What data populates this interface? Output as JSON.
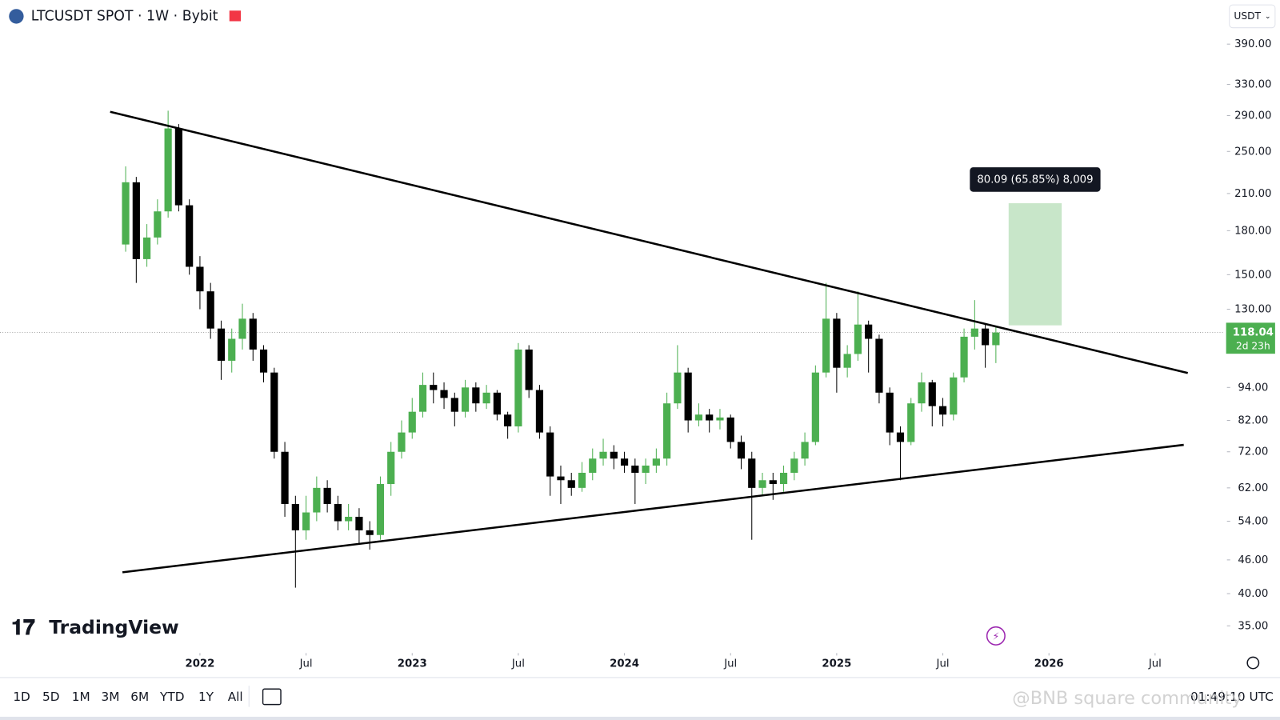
{
  "header": {
    "symbol": "LTCUSDT SPOT · 1W · Bybit",
    "currency": "USDT"
  },
  "chart_data": {
    "type": "candlestick",
    "scale": "log",
    "up_color": "#4caf50",
    "down_color": "#000000",
    "x": [
      2021.65,
      2021.7,
      2021.75,
      2021.8,
      2021.85,
      2021.9,
      2021.95,
      2022.0,
      2022.05,
      2022.1,
      2022.15,
      2022.2,
      2022.25,
      2022.3,
      2022.35,
      2022.4,
      2022.45,
      2022.5,
      2022.55,
      2022.6,
      2022.65,
      2022.7,
      2022.75,
      2022.8,
      2022.85,
      2022.9,
      2022.95,
      2023.0,
      2023.05,
      2023.1,
      2023.15,
      2023.2,
      2023.25,
      2023.3,
      2023.35,
      2023.4,
      2023.45,
      2023.5,
      2023.55,
      2023.6,
      2023.65,
      2023.7,
      2023.75,
      2023.8,
      2023.85,
      2023.9,
      2023.95,
      2024.0,
      2024.05,
      2024.1,
      2024.15,
      2024.2,
      2024.25,
      2024.3,
      2024.35,
      2024.4,
      2024.45,
      2024.5,
      2024.55,
      2024.6,
      2024.65,
      2024.7,
      2024.75,
      2024.8,
      2024.85,
      2024.9,
      2024.95,
      2025.0,
      2025.05,
      2025.1,
      2025.15,
      2025.2,
      2025.25,
      2025.3,
      2025.35,
      2025.4,
      2025.45,
      2025.5,
      2025.55,
      2025.6,
      2025.65,
      2025.7,
      2025.75
    ],
    "open": [
      170,
      220,
      160,
      175,
      195,
      275,
      200,
      155,
      140,
      120,
      105,
      115,
      125,
      110,
      100,
      72,
      58,
      52,
      56,
      62,
      58,
      54,
      55,
      52,
      51,
      63,
      72,
      78,
      85,
      95,
      93,
      90,
      85,
      94,
      88,
      92,
      84,
      80,
      110,
      93,
      78,
      65,
      64,
      62,
      66,
      70,
      72,
      70,
      68,
      66,
      68,
      70,
      88,
      100,
      82,
      84,
      82,
      83,
      75,
      70,
      62,
      64,
      63,
      66,
      70,
      75,
      100,
      125,
      102,
      108,
      122,
      115,
      92,
      78,
      75,
      88,
      96,
      87,
      84,
      98,
      116,
      120,
      112
    ],
    "high": [
      235,
      225,
      185,
      205,
      296,
      280,
      205,
      162,
      145,
      124,
      120,
      133,
      128,
      112,
      102,
      75,
      60,
      60,
      65,
      64,
      60,
      58,
      57,
      54,
      65,
      75,
      82,
      90,
      100,
      100,
      96,
      92,
      97,
      96,
      95,
      93,
      85,
      113,
      112,
      95,
      80,
      68,
      66,
      69,
      73,
      76,
      74,
      72,
      70,
      70,
      73,
      92,
      112,
      102,
      88,
      86,
      86,
      84,
      77,
      72,
      66,
      66,
      68,
      72,
      78,
      103,
      145,
      128,
      112,
      140,
      124,
      117,
      94,
      80,
      90,
      100,
      97,
      90,
      100,
      120,
      135,
      122,
      121
    ],
    "low": [
      165,
      145,
      155,
      170,
      190,
      195,
      150,
      130,
      115,
      97,
      100,
      110,
      105,
      96,
      70,
      55,
      41,
      50,
      54,
      56,
      52,
      52,
      49,
      48,
      50,
      60,
      70,
      76,
      83,
      88,
      86,
      80,
      83,
      85,
      86,
      82,
      76,
      78,
      90,
      76,
      60,
      58,
      60,
      61,
      64,
      68,
      67,
      66,
      58,
      63,
      66,
      68,
      86,
      78,
      80,
      78,
      79,
      73,
      67,
      50,
      60,
      59,
      61,
      64,
      68,
      74,
      98,
      92,
      98,
      105,
      100,
      88,
      74,
      64,
      74,
      85,
      80,
      80,
      82,
      96,
      110,
      102,
      104
    ],
    "close": [
      220,
      160,
      175,
      195,
      275,
      200,
      155,
      140,
      120,
      105,
      115,
      125,
      110,
      100,
      72,
      58,
      52,
      56,
      62,
      58,
      54,
      55,
      52,
      51,
      63,
      72,
      78,
      85,
      95,
      93,
      90,
      85,
      94,
      88,
      92,
      84,
      80,
      110,
      93,
      78,
      65,
      64,
      62,
      66,
      70,
      72,
      70,
      68,
      66,
      68,
      70,
      88,
      100,
      82,
      84,
      82,
      83,
      75,
      70,
      62,
      64,
      63,
      66,
      70,
      75,
      100,
      125,
      102,
      108,
      122,
      115,
      92,
      78,
      75,
      88,
      96,
      87,
      84,
      98,
      116,
      120,
      112,
      118.04
    ],
    "xlim": [
      2021.058,
      2026.827
    ],
    "xticks": [
      {
        "value": 2022,
        "label": "2022"
      },
      {
        "value": 2022.5,
        "label": "Jul"
      },
      {
        "value": 2023,
        "label": "2023"
      },
      {
        "value": 2023.5,
        "label": "Jul"
      },
      {
        "value": 2024,
        "label": "2024"
      },
      {
        "value": 2024.5,
        "label": "Jul"
      },
      {
        "value": 2025,
        "label": "2025"
      },
      {
        "value": 2025.5,
        "label": "Jul"
      },
      {
        "value": 2026,
        "label": "2026"
      },
      {
        "value": 2026.5,
        "label": "Jul"
      }
    ],
    "ylim": [
      31.8,
      409
    ],
    "yticks": [
      {
        "value": 35,
        "label": "35.00"
      },
      {
        "value": 40,
        "label": "40.00"
      },
      {
        "value": 46,
        "label": "46.00"
      },
      {
        "value": 54,
        "label": "54.00"
      },
      {
        "value": 62,
        "label": "62.00"
      },
      {
        "value": 72,
        "label": "72.00"
      },
      {
        "value": 82,
        "label": "82.00"
      },
      {
        "value": 94,
        "label": "94.00"
      },
      {
        "value": 130,
        "label": "130.00"
      },
      {
        "value": 150,
        "label": "150.00"
      },
      {
        "value": 180,
        "label": "180.00"
      },
      {
        "value": 210,
        "label": "210.00"
      },
      {
        "value": 250,
        "label": "250.00"
      },
      {
        "value": 290,
        "label": "290.00"
      },
      {
        "value": 330,
        "label": "330.00"
      },
      {
        "value": 390,
        "label": "390.00"
      }
    ],
    "last_price": 118.04,
    "countdown": "2d 23h",
    "last_price_color": "#4caf50",
    "trendlines": [
      {
        "x": [
          2021.577,
          2026.654
        ],
        "y": [
          294.6,
          99.8
        ]
      },
      {
        "x": [
          2021.635,
          2026.635
        ],
        "y": [
          43.7,
          74.1
        ]
      }
    ],
    "measure": {
      "x": [
        2025.81,
        2026.06
      ],
      "y": [
        121.6,
        201.7
      ],
      "label": "80.09 (65.85%) 8,009",
      "color": "#c8e6c9"
    }
  },
  "logo": "TradingView",
  "toolbar": {
    "ranges": [
      "1D",
      "5D",
      "1M",
      "3M",
      "6M",
      "YTD",
      "1Y",
      "All"
    ],
    "clock": "01:49:10 UTC"
  },
  "watermark": "@BNB square community"
}
